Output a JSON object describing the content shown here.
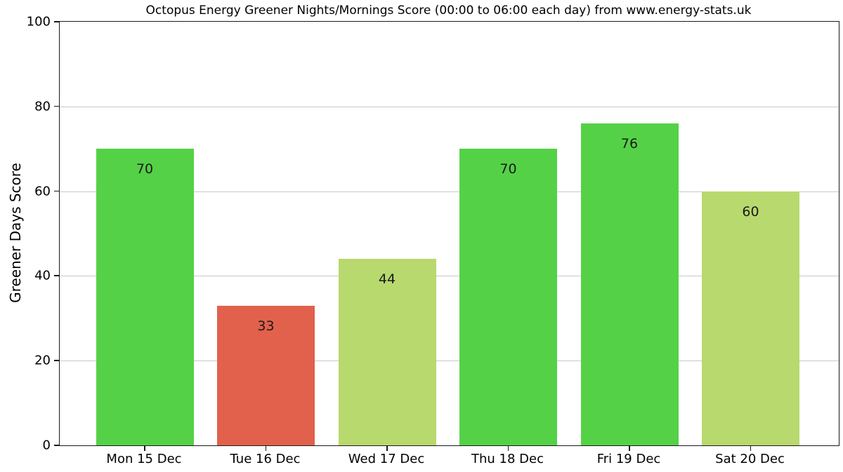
{
  "chart_data": {
    "type": "bar",
    "title": "Octopus Energy Greener Nights/Mornings Score (00:00 to 06:00 each day) from www.energy-stats.uk",
    "ylabel": "Greener Days Score",
    "xlabel": "",
    "categories": [
      "Mon 15 Dec",
      "Tue 16 Dec",
      "Wed 17 Dec",
      "Thu 18 Dec",
      "Fri 19 Dec",
      "Sat 20 Dec"
    ],
    "values": [
      70,
      33,
      44,
      70,
      76,
      60
    ],
    "bar_colors": [
      "#55d147",
      "#e2614c",
      "#b8d96e",
      "#55d147",
      "#55d147",
      "#b8d96e"
    ],
    "ylim": [
      0,
      100
    ],
    "yticks": [
      0,
      20,
      40,
      60,
      80,
      100
    ],
    "grid": "horizontal",
    "gridline_color": "#c9c9c9",
    "legend": "none",
    "plot_background": "#ffffff",
    "value_label_color": "#1a1a1a"
  }
}
